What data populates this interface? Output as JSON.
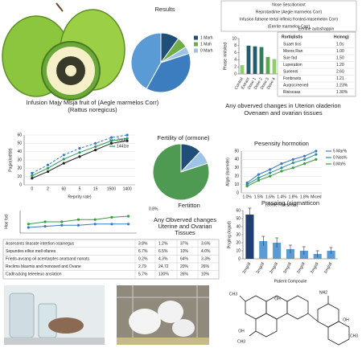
{
  "chart_data": [
    {
      "type": "pie",
      "title": "Results",
      "categories": [
        "1 Marh",
        "1 Mah",
        "0 Marh",
        null,
        null
      ],
      "values": [
        10,
        6,
        4,
        38,
        42
      ],
      "colors": [
        "#1f4e79",
        "#70ad47",
        "#9dc3e6",
        "#3b7dbf",
        "#5b9bd5"
      ],
      "legend": "right"
    },
    {
      "type": "bar",
      "ylabel": "Phase inhibited",
      "categories": [
        "Control",
        "Extract",
        "Dose 1",
        "Dose 2",
        "Dose 3",
        "Dose 4"
      ],
      "values": [
        2.5,
        8,
        7.8,
        7.6,
        4.8,
        4.2
      ],
      "colors": [
        "#8fcf6a",
        "#1f5e6e",
        "#1f5e6e",
        "#2f7d5a",
        "#5aa84c",
        "#8fcf6a"
      ],
      "ylim": [
        0,
        10
      ],
      "yticks": [
        0,
        2,
        4,
        6,
        8,
        10
      ],
      "rotate_labels": true
    },
    {
      "type": "line",
      "ylabel": "Pagie(lodfdit)",
      "xlabel": "Reprrity rate)",
      "categories": [
        "0",
        "2",
        "60",
        "5",
        "15",
        "1500",
        "1400"
      ],
      "series": [
        {
          "name": "Zatde",
          "color": "#3a78c2",
          "dashed": true,
          "values": [
            14,
            24,
            36,
            44,
            50,
            57,
            60
          ]
        },
        {
          "name": "1441te",
          "color": "#2d9b5c",
          "dashed": false,
          "values": [
            11,
            20,
            31,
            39,
            46,
            53,
            56
          ]
        },
        {
          "name": null,
          "color": "#222222",
          "dashed": false,
          "values": [
            8,
            16,
            26,
            34,
            42,
            50,
            53
          ]
        }
      ],
      "ylim": [
        0,
        60
      ],
      "yticks": [
        0,
        10,
        20,
        30,
        40,
        50,
        60
      ],
      "grid": true,
      "legend": "top-right"
    },
    {
      "type": "pie",
      "title": "Fertility of (ormone)",
      "annotation": "Fertitton",
      "categories": [
        null,
        null,
        null
      ],
      "values": [
        12,
        8,
        80
      ],
      "colors": [
        "#1f4e79",
        "#9dc3e6",
        "#4e9a53"
      ]
    },
    {
      "type": "line",
      "title": "Pesensity hormotion",
      "ylabel": "Aligni (Isoimide)",
      "xlabel": "(Cortle Rolestrals)",
      "categories": [
        "1.0%",
        "1.5%",
        "1.6%",
        "1.4%",
        "1.8%",
        "1.8%",
        "Miced"
      ],
      "series": [
        {
          "name": "5 Mar%",
          "color": "#3a78c2",
          "dashed": false,
          "values": [
            12,
            22,
            28,
            35,
            40,
            44,
            50
          ]
        },
        {
          "name": "0 Nos%",
          "color": "#2a8f8f",
          "dashed": false,
          "values": [
            10,
            18,
            24,
            30,
            36,
            40,
            46
          ]
        },
        {
          "name": "0.Ma%",
          "color": "#3d9a3d",
          "dashed": false,
          "values": [
            8,
            15,
            20,
            26,
            30,
            35,
            40
          ]
        }
      ],
      "ylim": [
        0,
        50
      ],
      "yticks": [
        0,
        10,
        20,
        30,
        40,
        50
      ],
      "grid": true,
      "legend": "right"
    },
    {
      "type": "line",
      "ylabel": "Hoe fad",
      "annotation": "0.8%",
      "categories": [
        null,
        null,
        null,
        null,
        null,
        null,
        null
      ],
      "series": [
        {
          "name": null,
          "color": "#3d9a3d",
          "dashed": false,
          "values": [
            8,
            10,
            10,
            12,
            12,
            14,
            15
          ]
        },
        {
          "name": null,
          "color": "#3a78c2",
          "dashed": false,
          "values": [
            5,
            6,
            7,
            7,
            8,
            8,
            8
          ]
        }
      ],
      "ylim": [
        0,
        20
      ],
      "grid": false
    },
    {
      "type": "bar",
      "title": "Prasaing (sigmatticon",
      "ylabel": "Prigling (Iogod)",
      "xlabel": "Patient Compoulie",
      "categories": [
        "2mg/dl",
        "3mg/dl",
        "2mg/dl",
        "3mg/dl",
        "2mg/dl",
        "2mg/dl",
        "1mg/dl"
      ],
      "values": [
        55,
        22,
        20,
        12,
        10,
        6,
        10
      ],
      "errors": [
        8,
        6,
        6,
        5,
        5,
        4,
        4
      ],
      "colors": [
        "#1f3f73",
        "#5b9bd5",
        "#5b9bd5",
        "#5b9bd5",
        "#5b9bd5",
        "#5b9bd5",
        "#5b9bd5"
      ],
      "ylim": [
        0,
        60
      ],
      "yticks": [
        0,
        10,
        20,
        30,
        40,
        50,
        60
      ],
      "rotate_labels": true
    }
  ],
  "header_box": {
    "lines": [
      "Nose Sescitioniont",
      "Reprotardime (Aegle marmelos Corr)",
      "Infusion fatnene tertal inflexis fronted-masemelon Corr)",
      "(Eerrite marmelos Corr)"
    ]
  },
  "side_table": {
    "title": "Eerithe autoshappin",
    "header": [
      "Rortiqlistis",
      "Hcinng)"
    ],
    "rows": [
      [
        "Suaer tios",
        "1.0s"
      ],
      [
        "Moros Ran",
        "1.00"
      ],
      [
        "Sue fad",
        "1.50"
      ],
      [
        "Luperation",
        "1.20"
      ],
      [
        "Sueenel",
        "2.60"
      ],
      [
        "Fonbrasts",
        "1.21"
      ],
      [
        "Auqrocreened",
        "1.23%"
      ],
      [
        "Risiscaas",
        "1.30%"
      ]
    ]
  },
  "headings": {
    "left": [
      "Infusion Majy Mlsja fruit of (Aegle marmelos Corr)",
      "(Rattus noregicus)"
    ],
    "right": [
      "Any obverved changes in Uterion oladerion",
      "Ovenaen and ovarian tissues"
    ],
    "lower": [
      "Any Obverved changes",
      "Uterine and Ovarian",
      "Tissues"
    ]
  },
  "table": {
    "rows": [
      [
        "Assesonts linasate intertion osainegus",
        "3.8%",
        "1.2%",
        "37%",
        "3.6%"
      ],
      [
        "Sepundes ellice mell ofanes",
        "6.7%",
        "6.5%",
        "10%",
        "4.0%"
      ],
      [
        "Frieds-avcang oil acentarptes anatsand nonats",
        "0.2%",
        "4.3%",
        "64%",
        "3.3%"
      ],
      [
        "Reclims blasmis and monosed and Ovane",
        "2.79",
        "24.72",
        "20%",
        "26%"
      ],
      [
        "Cadlracking teleeleuo anslation",
        "5.7%",
        "130%",
        "26%",
        "10%"
      ]
    ]
  },
  "structure": {
    "labels": [
      "CH3",
      "OH",
      "NH2",
      "OH",
      "CH3",
      "CH3",
      "OH"
    ]
  }
}
